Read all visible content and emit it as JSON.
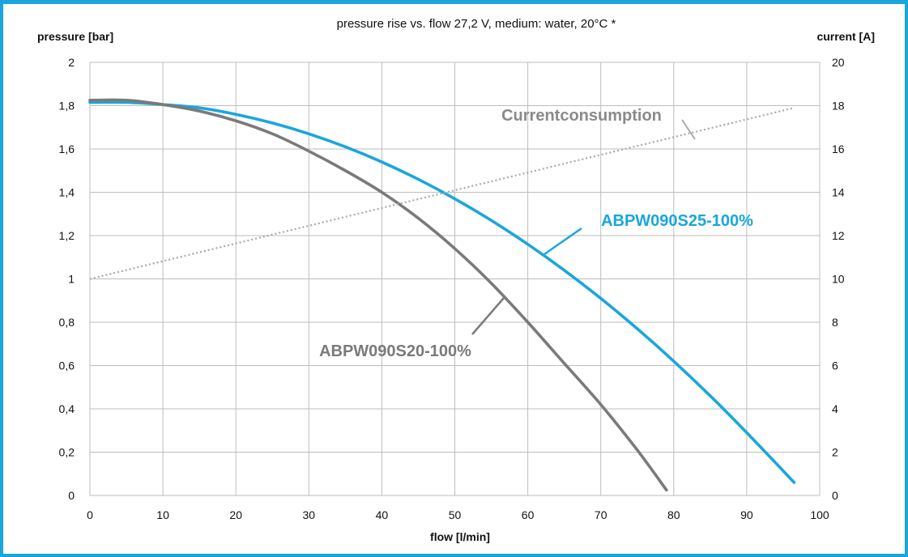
{
  "chart_data": {
    "type": "line",
    "title": "pressure rise vs. flow 27,2 V, medium: water, 20°C *",
    "xlabel": "flow [l/min]",
    "ylabel": "pressure [bar]",
    "y2label": "current [A]",
    "xlim": [
      0,
      100
    ],
    "ylim": [
      0,
      2
    ],
    "y2lim": [
      0,
      20
    ],
    "grid": true,
    "x_ticks": [
      "0",
      "10",
      "20",
      "30",
      "40",
      "50",
      "60",
      "70",
      "80",
      "90",
      "100"
    ],
    "y_ticks": [
      "0",
      "0,2",
      "0,4",
      "0,6",
      "0,8",
      "1",
      "1,2",
      "1,4",
      "1,6",
      "1,8",
      "2"
    ],
    "y2_ticks": [
      "0",
      "2",
      "4",
      "6",
      "8",
      "10",
      "12",
      "14",
      "16",
      "18",
      "20"
    ],
    "series": [
      {
        "name": "ABPW090S25-100%",
        "axis": "left",
        "color": "#1aa6dc",
        "x": [
          0,
          5,
          10,
          15,
          20,
          25,
          30,
          35,
          40,
          45,
          50,
          55,
          60,
          65,
          70,
          75,
          80,
          85,
          90,
          96.5
        ],
        "y": [
          1.815,
          1.815,
          1.805,
          1.79,
          1.76,
          1.72,
          1.67,
          1.61,
          1.54,
          1.46,
          1.37,
          1.27,
          1.16,
          1.04,
          0.91,
          0.77,
          0.62,
          0.46,
          0.29,
          0.06
        ]
      },
      {
        "name": "ABPW090S20-100%",
        "axis": "left",
        "color": "#7a7a7a",
        "x": [
          0,
          5,
          10,
          15,
          20,
          25,
          30,
          35,
          40,
          45,
          50,
          55,
          60,
          65,
          70,
          75,
          79
        ],
        "y": [
          1.825,
          1.825,
          1.805,
          1.775,
          1.73,
          1.67,
          1.59,
          1.5,
          1.4,
          1.28,
          1.14,
          0.98,
          0.8,
          0.61,
          0.42,
          0.21,
          0.025
        ]
      },
      {
        "name": "Currentconsumption",
        "axis": "right",
        "color": "#a8a8a8",
        "style": "dotted",
        "x": [
          0,
          96.5
        ],
        "y": [
          10,
          17.9
        ]
      }
    ],
    "annotations": [
      {
        "text": "Currentconsumption",
        "color": "#8a8a8a"
      },
      {
        "text": "ABPW090S25-100%",
        "color": "#1aa6dc"
      },
      {
        "text": "ABPW090S20-100%",
        "color": "#7a7a7a"
      }
    ]
  }
}
